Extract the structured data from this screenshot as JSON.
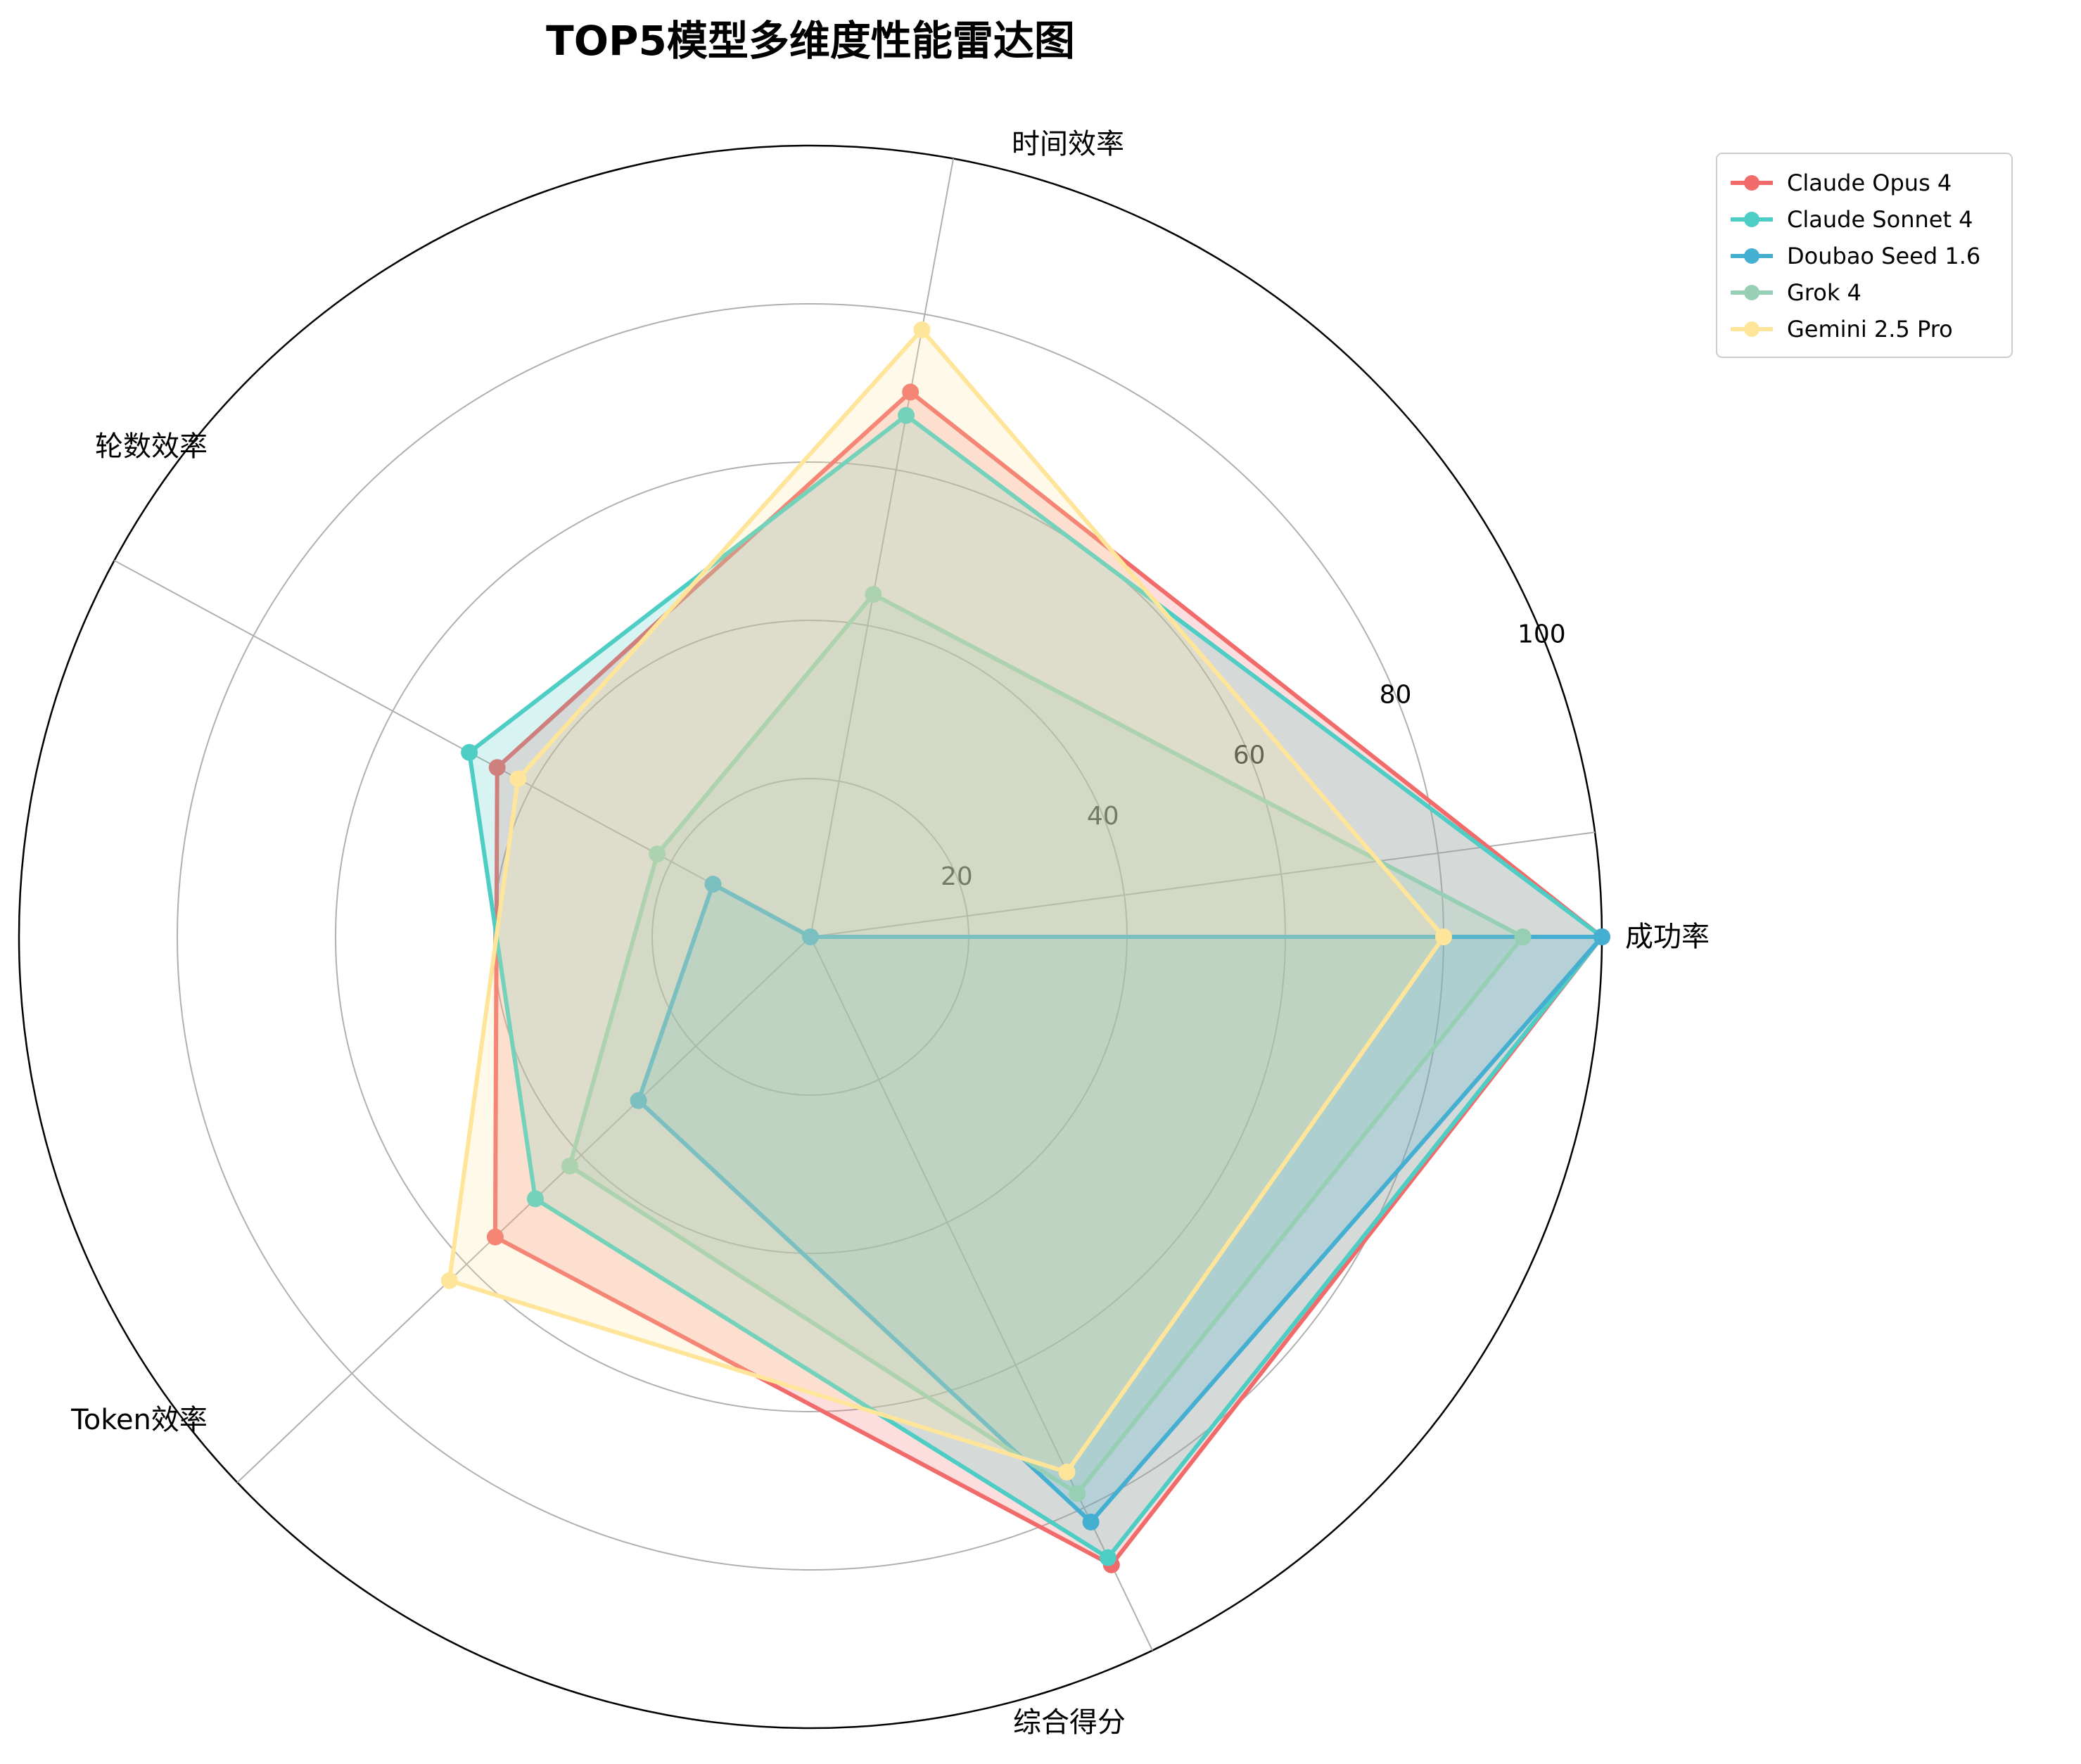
{
  "chart_data": {
    "type": "radar",
    "title": "TOP5模型多维度性能雷达图",
    "axes": [
      "成功率",
      "时间效率",
      "轮数效率",
      "Token效率",
      "综合得分"
    ],
    "rlim": [
      0,
      100
    ],
    "rticks": [
      20,
      40,
      60,
      80,
      100
    ],
    "grid": true,
    "legend_position": "top-right",
    "series": [
      {
        "name": "Claude Opus 4",
        "color": "#f26b6b",
        "values": [
          100,
          70,
          45,
          55,
          88
        ]
      },
      {
        "name": "Claude Sonnet 4",
        "color": "#4ecdc4",
        "values": [
          100,
          67,
          49,
          48,
          87
        ]
      },
      {
        "name": "Doubao Seed 1.6",
        "color": "#45afd1",
        "values": [
          100,
          0,
          14,
          30,
          82
        ]
      },
      {
        "name": "Grok 4",
        "color": "#96cfb4",
        "values": [
          90,
          44,
          22,
          42,
          78
        ]
      },
      {
        "name": "Gemini 2.5 Pro",
        "color": "#ffe599",
        "values": [
          80,
          78,
          42,
          63,
          75
        ]
      }
    ]
  }
}
